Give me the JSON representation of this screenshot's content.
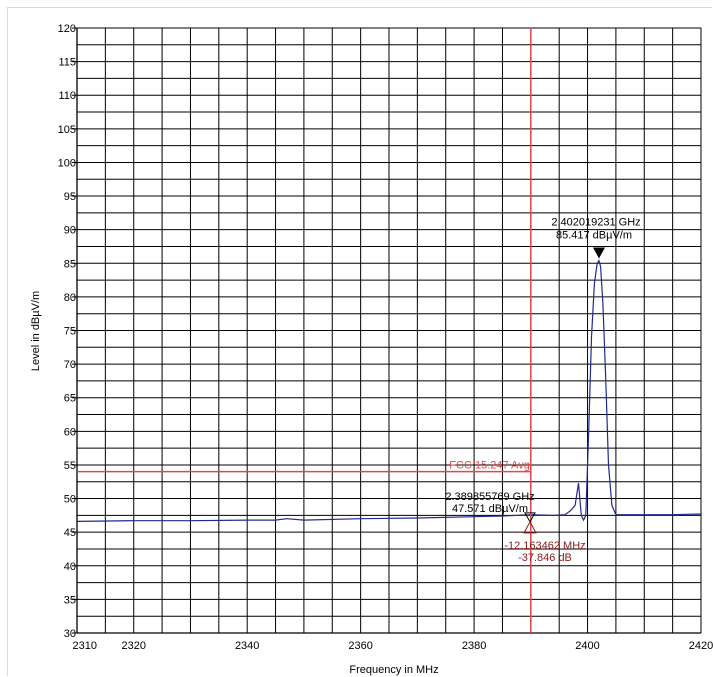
{
  "chart_data": {
    "type": "line",
    "xlabel": "Frequency in MHz",
    "ylabel": "Level in dBµV/m",
    "xlim": [
      2310,
      2420
    ],
    "ylim": [
      30,
      120
    ],
    "x_ticks": [
      2310,
      2320,
      2340,
      2360,
      2380,
      2400,
      2420
    ],
    "x_tick_labels": [
      "2310",
      "2320",
      "2340",
      "2360",
      "2380",
      "2400",
      "2420"
    ],
    "y_ticks": [
      30,
      35,
      40,
      45,
      50,
      55,
      60,
      65,
      70,
      75,
      80,
      85,
      90,
      95,
      100,
      105,
      110,
      115,
      120
    ],
    "y_tick_labels": [
      "30",
      "35",
      "40",
      "45",
      "50",
      "55",
      "60",
      "65",
      "70",
      "75",
      "80",
      "85",
      "90",
      "95",
      "100",
      "105",
      "110",
      "115",
      "120"
    ],
    "grid": true,
    "series": [
      {
        "color": "#1f2a8c",
        "x": [
          2310,
          2320,
          2330,
          2340,
          2345,
          2347,
          2350,
          2360,
          2370,
          2380,
          2385,
          2390,
          2394,
          2396,
          2397,
          2397.8,
          2398.4,
          2398.9,
          2399.3,
          2399.7,
          2400.2,
          2400.7,
          2401.2,
          2401.7,
          2402.0,
          2402.3,
          2402.7,
          2403.2,
          2403.7,
          2404.3,
          2405,
          2410,
          2415,
          2420
        ],
        "y": [
          46.6,
          46.7,
          46.7,
          46.8,
          46.8,
          47.0,
          46.8,
          47.0,
          47.1,
          47.3,
          47.4,
          47.6,
          47.5,
          47.6,
          48.2,
          49.0,
          52.3,
          47.5,
          46.8,
          47.5,
          60.0,
          74.0,
          82.0,
          85.0,
          85.4,
          84.5,
          79.0,
          68.0,
          55.0,
          49.0,
          47.6,
          47.6,
          47.6,
          47.7
        ]
      }
    ],
    "limit_line": {
      "label": "FCC 15.247 Avg",
      "y": 54,
      "x_end": 2390,
      "color": "#e0474c"
    },
    "vertical_line": {
      "x": 2390,
      "color": "#e0474c"
    },
    "markers": [
      {
        "x": 2402.019231,
        "y": 85.417,
        "line1": "2.402019231 GHz",
        "line2": "85.417 dBµV/m"
      },
      {
        "x": 2389.855769,
        "y": 47.571,
        "line1": "2.389855769 GHz",
        "line2": "47.571 dBµV/m"
      }
    ],
    "delta": {
      "line1": "-12.163462 MHz",
      "line2": "-37.846 dB",
      "color": "#8b1a1a"
    }
  }
}
